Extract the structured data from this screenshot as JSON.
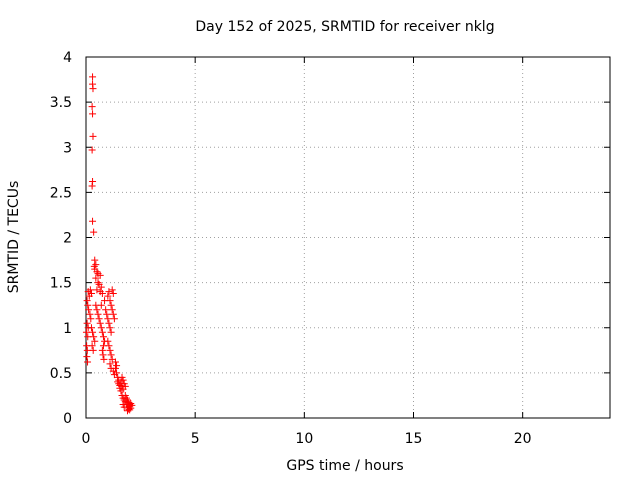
{
  "chart_data": {
    "type": "scatter",
    "title": "Day 152 of 2025, SRMTID for receiver nklg",
    "xlabel": "GPS time / hours",
    "ylabel": "SRMTID / TECUs",
    "xlim": [
      0,
      24
    ],
    "ylim": [
      0,
      4
    ],
    "xticks": [
      0,
      5,
      10,
      15,
      20
    ],
    "yticks": [
      0,
      0.5,
      1,
      1.5,
      2,
      2.5,
      3,
      3.5,
      4
    ],
    "grid": true,
    "marker": "+",
    "color": "#ff0000",
    "series": [
      {
        "name": "SRMTID",
        "points": [
          [
            0.3,
            3.78
          ],
          [
            0.3,
            3.7
          ],
          [
            0.32,
            3.65
          ],
          [
            0.28,
            3.45
          ],
          [
            0.3,
            3.37
          ],
          [
            0.32,
            3.12
          ],
          [
            0.28,
            2.97
          ],
          [
            0.3,
            2.62
          ],
          [
            0.28,
            2.57
          ],
          [
            0.3,
            2.18
          ],
          [
            0.35,
            2.06
          ],
          [
            0.4,
            1.75
          ],
          [
            0.45,
            1.7
          ],
          [
            0.38,
            1.68
          ],
          [
            0.4,
            1.65
          ],
          [
            0.5,
            1.62
          ],
          [
            0.55,
            1.6
          ],
          [
            0.65,
            1.58
          ],
          [
            0.45,
            1.55
          ],
          [
            0.55,
            1.5
          ],
          [
            0.6,
            1.48
          ],
          [
            0.7,
            1.45
          ],
          [
            0.5,
            1.42
          ],
          [
            0.65,
            1.4
          ],
          [
            0.75,
            1.38
          ],
          [
            0.1,
            1.4
          ],
          [
            0.2,
            1.42
          ],
          [
            0.15,
            1.35
          ],
          [
            0.25,
            1.38
          ],
          [
            0.05,
            1.3
          ],
          [
            0.08,
            1.25
          ],
          [
            0.12,
            1.2
          ],
          [
            0.18,
            1.15
          ],
          [
            0.22,
            1.1
          ],
          [
            0.05,
            1.05
          ],
          [
            0.1,
            1.0
          ],
          [
            0.02,
            0.95
          ],
          [
            0.08,
            0.9
          ],
          [
            0.03,
            0.8
          ],
          [
            0.06,
            0.75
          ],
          [
            0.04,
            0.68
          ],
          [
            0.07,
            0.62
          ],
          [
            0.25,
            1.0
          ],
          [
            0.3,
            0.95
          ],
          [
            0.35,
            0.9
          ],
          [
            0.4,
            0.85
          ],
          [
            0.28,
            0.8
          ],
          [
            0.33,
            0.75
          ],
          [
            0.45,
            1.25
          ],
          [
            0.5,
            1.2
          ],
          [
            0.55,
            1.15
          ],
          [
            0.6,
            1.1
          ],
          [
            0.65,
            1.05
          ],
          [
            0.7,
            1.0
          ],
          [
            0.75,
            0.95
          ],
          [
            0.8,
            0.9
          ],
          [
            0.85,
            0.85
          ],
          [
            0.8,
            0.8
          ],
          [
            0.75,
            0.75
          ],
          [
            0.78,
            0.7
          ],
          [
            0.82,
            0.65
          ],
          [
            0.7,
            1.25
          ],
          [
            0.85,
            1.3
          ],
          [
            0.9,
            1.2
          ],
          [
            0.95,
            1.15
          ],
          [
            1.0,
            1.1
          ],
          [
            1.05,
            1.05
          ],
          [
            1.1,
            1.0
          ],
          [
            1.15,
            0.95
          ],
          [
            1.0,
            1.35
          ],
          [
            1.05,
            1.4
          ],
          [
            1.1,
            1.3
          ],
          [
            1.15,
            1.25
          ],
          [
            1.2,
            1.2
          ],
          [
            1.25,
            1.15
          ],
          [
            1.2,
            1.42
          ],
          [
            1.25,
            1.38
          ],
          [
            1.3,
            1.1
          ],
          [
            1.0,
            0.85
          ],
          [
            1.05,
            0.8
          ],
          [
            1.1,
            0.75
          ],
          [
            1.15,
            0.7
          ],
          [
            1.2,
            0.65
          ],
          [
            1.1,
            0.6
          ],
          [
            1.15,
            0.55
          ],
          [
            1.25,
            0.52
          ],
          [
            1.3,
            0.48
          ],
          [
            1.35,
            0.62
          ],
          [
            1.4,
            0.58
          ],
          [
            1.35,
            0.55
          ],
          [
            1.4,
            0.5
          ],
          [
            1.45,
            0.45
          ],
          [
            1.5,
            0.42
          ],
          [
            1.45,
            0.4
          ],
          [
            1.5,
            0.38
          ],
          [
            1.55,
            0.36
          ],
          [
            1.6,
            0.4
          ],
          [
            1.65,
            0.35
          ],
          [
            1.7,
            0.32
          ],
          [
            1.6,
            0.3
          ],
          [
            1.55,
            0.33
          ],
          [
            1.7,
            0.42
          ],
          [
            1.75,
            0.38
          ],
          [
            1.65,
            0.45
          ],
          [
            1.8,
            0.35
          ],
          [
            1.65,
            0.25
          ],
          [
            1.7,
            0.22
          ],
          [
            1.75,
            0.2
          ],
          [
            1.8,
            0.18
          ],
          [
            1.85,
            0.15
          ],
          [
            1.7,
            0.15
          ],
          [
            1.75,
            0.12
          ],
          [
            1.8,
            0.25
          ],
          [
            1.85,
            0.22
          ],
          [
            1.9,
            0.2
          ],
          [
            1.95,
            0.17
          ],
          [
            2.0,
            0.15
          ],
          [
            1.9,
            0.12
          ],
          [
            1.95,
            0.1
          ],
          [
            2.0,
            0.13
          ],
          [
            2.05,
            0.11
          ],
          [
            2.1,
            0.14
          ],
          [
            2.05,
            0.16
          ],
          [
            2.0,
            0.09
          ],
          [
            1.9,
            0.08
          ]
        ]
      }
    ]
  }
}
